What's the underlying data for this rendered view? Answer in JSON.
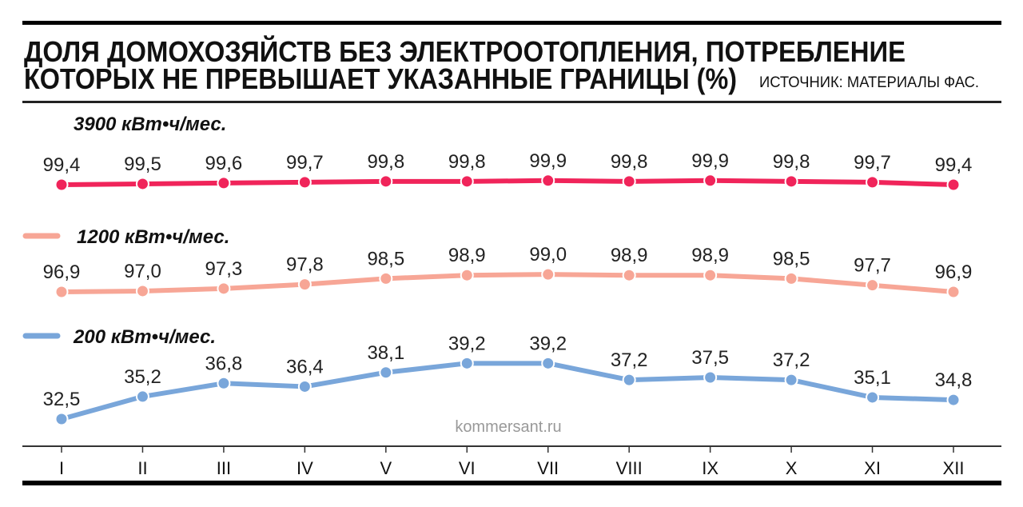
{
  "chart_data": {
    "type": "line",
    "title": "ДОЛЯ ДОМОХОЗЯЙСТВ БЕЗ ЭЛЕКТРООТОПЛЕНИЯ, ПОТРЕБЛЕНИЕ КОТОРЫХ НЕ ПРЕВЫШАЕТ УКАЗАННЫЕ ГРАНИЦЫ (%)",
    "title_lines": [
      "ДОЛЯ ДОМОХОЗЯЙСТВ БЕЗ ЭЛЕКТРООТОПЛЕНИЯ, ПОТРЕБЛЕНИЕ",
      "КОТОРЫХ НЕ ПРЕВЫШАЕТ УКАЗАННЫЕ ГРАНИЦЫ (%)"
    ],
    "source": "ИСТОЧНИК: МАТЕРИАЛЫ ФАС.",
    "watermark": "kommersant.ru",
    "categories": [
      "I",
      "II",
      "III",
      "IV",
      "V",
      "VI",
      "VII",
      "VIII",
      "IX",
      "X",
      "XI",
      "XII"
    ],
    "grid": false,
    "legend_placement": "inline-left",
    "series": [
      {
        "name": "3900 кВт•ч/мес.",
        "color": "#f0245a",
        "values": [
          99.4,
          99.5,
          99.6,
          99.7,
          99.8,
          99.8,
          99.9,
          99.8,
          99.9,
          99.8,
          99.7,
          99.4
        ],
        "labels": [
          "99,4",
          "99,5",
          "99,6",
          "99,7",
          "99,8",
          "99,8",
          "99,9",
          "99,8",
          "99,9",
          "99,8",
          "99,7",
          "99,4"
        ]
      },
      {
        "name": "1200 кВт•ч/мес.",
        "color": "#f7a696",
        "values": [
          96.9,
          97.0,
          97.3,
          97.8,
          98.5,
          98.9,
          99.0,
          98.9,
          98.9,
          98.5,
          97.7,
          96.9
        ],
        "labels": [
          "96,9",
          "97,0",
          "97,3",
          "97,8",
          "98,5",
          "98,9",
          "99,0",
          "98,9",
          "98,9",
          "98,5",
          "97,7",
          "96,9"
        ]
      },
      {
        "name": "200 кВт•ч/мес.",
        "color": "#79a6da",
        "values": [
          32.5,
          35.2,
          36.8,
          36.4,
          38.1,
          39.2,
          39.2,
          37.2,
          37.5,
          37.2,
          35.1,
          34.8
        ],
        "labels": [
          "32,5",
          "35,2",
          "36,8",
          "36,4",
          "38,1",
          "39,2",
          "39,2",
          "37,2",
          "37,5",
          "37,2",
          "35,1",
          "34,8"
        ]
      }
    ]
  }
}
